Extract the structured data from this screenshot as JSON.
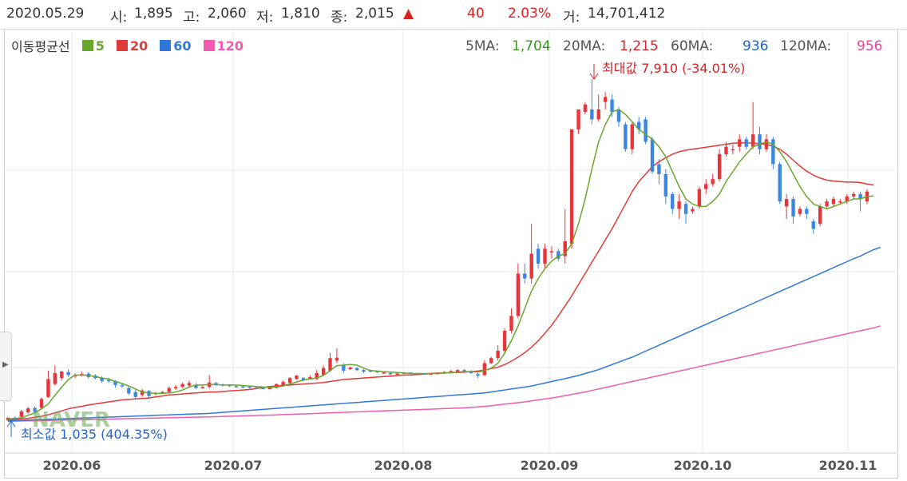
{
  "info": {
    "date": "2020.05.29",
    "open_label": "시:",
    "open": "1,895",
    "high_label": "고:",
    "high": "2,060",
    "low_label": "저:",
    "low": "1,810",
    "close_label": "종:",
    "close": "2,015",
    "arrow": "▲",
    "change": "40",
    "change_pct": "2.03%",
    "volume_label": "거:",
    "volume": "14,701,412"
  },
  "legend": {
    "title": "이동평균선",
    "items": [
      {
        "label": "5",
        "color": "#69a62d"
      },
      {
        "label": "20",
        "color": "#e03a3a"
      },
      {
        "label": "60",
        "color": "#2f78d9"
      },
      {
        "label": "120",
        "color": "#f05bb0"
      }
    ]
  },
  "ma_values": [
    {
      "name": "5MA:",
      "value": "1,704",
      "color": "#3a9a1e"
    },
    {
      "name": "20MA:",
      "value": "1,215",
      "color": "#e0202a"
    },
    {
      "name": "60MA:",
      "value": "936",
      "color": "#1a66c8"
    },
    {
      "name": "120MA:",
      "value": "956",
      "color": "#f0409e"
    }
  ],
  "annotations": {
    "max_label": "최대값 7,910 (-34.01%)",
    "min_label": "최소값 1,035 (404.35%)",
    "watermark": "NAVER"
  },
  "side_tab_icon": "expand-arrow-icon",
  "chart_data": {
    "type": "candlestick",
    "title": "",
    "x_tick_labels": [
      "2020.06",
      "2020.07",
      "2020.08",
      "2020.09",
      "2020.10",
      "2020.11"
    ],
    "grid": true,
    "ylim": [
      1035,
      7910
    ],
    "colors": {
      "up": "#e8343a",
      "down": "#3b86e0"
    },
    "candles": [
      [
        1053,
        1100,
        1040,
        1120
      ],
      [
        1100,
        1080,
        1050,
        1120
      ],
      [
        1120,
        1230,
        1110,
        1260
      ],
      [
        1210,
        1290,
        1180,
        1320
      ],
      [
        1300,
        1220,
        1200,
        1330
      ],
      [
        1300,
        1480,
        1270,
        1510
      ],
      [
        1520,
        1880,
        1500,
        2050
      ],
      [
        1780,
        2000,
        1750,
        2150
      ],
      [
        1900,
        2030,
        1850,
        2050
      ],
      [
        2020,
        1960,
        1920,
        2080
      ],
      [
        1940,
        1960,
        1900,
        2000
      ],
      [
        1960,
        1980,
        1940,
        2030
      ],
      [
        1990,
        1920,
        1890,
        2020
      ],
      [
        1950,
        1900,
        1870,
        1980
      ],
      [
        1910,
        1840,
        1800,
        1940
      ],
      [
        1860,
        1850,
        1800,
        1900
      ],
      [
        1840,
        1760,
        1710,
        1860
      ],
      [
        1760,
        1740,
        1700,
        1800
      ],
      [
        1700,
        1590,
        1560,
        1740
      ],
      [
        1620,
        1520,
        1480,
        1660
      ],
      [
        1560,
        1650,
        1520,
        1680
      ],
      [
        1640,
        1540,
        1500,
        1660
      ],
      [
        1600,
        1600,
        1550,
        1620
      ],
      [
        1610,
        1620,
        1580,
        1640
      ],
      [
        1620,
        1700,
        1600,
        1730
      ],
      [
        1690,
        1720,
        1660,
        1760
      ],
      [
        1720,
        1780,
        1700,
        1810
      ],
      [
        1750,
        1800,
        1720,
        1850
      ],
      [
        1760,
        1700,
        1680,
        1800
      ],
      [
        1700,
        1720,
        1680,
        1740
      ],
      [
        1720,
        1810,
        1700,
        1960
      ],
      [
        1800,
        1770,
        1740,
        1820
      ],
      [
        1770,
        1760,
        1730,
        1790
      ],
      [
        1760,
        1750,
        1720,
        1770
      ],
      [
        1740,
        1730,
        1700,
        1760
      ],
      [
        1730,
        1720,
        1700,
        1740
      ],
      [
        1720,
        1710,
        1690,
        1730
      ],
      [
        1710,
        1700,
        1680,
        1720
      ],
      [
        1700,
        1690,
        1680,
        1710
      ],
      [
        1690,
        1700,
        1680,
        1720
      ],
      [
        1700,
        1780,
        1690,
        1790
      ],
      [
        1750,
        1820,
        1740,
        1850
      ],
      [
        1800,
        1900,
        1780,
        1920
      ],
      [
        1880,
        1950,
        1860,
        1960
      ],
      [
        1900,
        1860,
        1840,
        1920
      ],
      [
        1880,
        1920,
        1870,
        1960
      ],
      [
        1880,
        2000,
        1860,
        2060
      ],
      [
        1960,
        2100,
        1940,
        2150
      ],
      [
        2050,
        2300,
        2020,
        2400
      ],
      [
        2250,
        2310,
        2200,
        2500
      ],
      [
        2150,
        2050,
        2000,
        2200
      ],
      [
        2080,
        2110,
        2060,
        2130
      ],
      [
        2100,
        2060,
        2040,
        2120
      ],
      [
        2060,
        2030,
        2000,
        2080
      ],
      [
        2050,
        2040,
        2020,
        2070
      ],
      [
        2040,
        2020,
        2000,
        2050
      ],
      [
        2010,
        2010,
        1990,
        2020
      ],
      [
        2000,
        1980,
        1960,
        2010
      ],
      [
        1980,
        1990,
        1970,
        2000
      ],
      [
        1990,
        2010,
        1980,
        2020
      ],
      [
        2010,
        2000,
        1990,
        2020
      ],
      [
        2000,
        1990,
        1980,
        2010
      ],
      [
        1990,
        1980,
        1970,
        2000
      ],
      [
        1980,
        1990,
        1970,
        2000
      ],
      [
        1990,
        2000,
        1980,
        2010
      ],
      [
        1990,
        2020,
        1980,
        2040
      ],
      [
        2000,
        2040,
        1990,
        2060
      ],
      [
        2030,
        2060,
        2010,
        2080
      ],
      [
        2060,
        2030,
        2020,
        2080
      ],
      [
        2040,
        2000,
        1980,
        2060
      ],
      [
        1980,
        1950,
        1900,
        2000
      ],
      [
        1960,
        2200,
        1940,
        2260
      ],
      [
        2200,
        2300,
        2180,
        2330
      ],
      [
        2300,
        2450,
        2250,
        2560
      ],
      [
        2450,
        2850,
        2400,
        2900
      ],
      [
        2850,
        3150,
        2800,
        3300
      ],
      [
        3150,
        4000,
        3100,
        4200
      ],
      [
        4000,
        3900,
        3800,
        4200
      ],
      [
        3900,
        4400,
        3800,
        5000
      ],
      [
        4500,
        4200,
        4100,
        4600
      ],
      [
        4200,
        4500,
        4100,
        4600
      ],
      [
        4450,
        4450,
        4300,
        4550
      ],
      [
        4450,
        4300,
        4250,
        4500
      ],
      [
        4350,
        4650,
        4200,
        5300
      ],
      [
        4600,
        6900,
        4500,
        6900
      ],
      [
        6900,
        7300,
        6800,
        7300
      ],
      [
        7250,
        7400,
        7200,
        7450
      ],
      [
        7300,
        7100,
        7000,
        7910
      ],
      [
        7100,
        7300,
        7050,
        7600
      ],
      [
        7450,
        7550,
        7300,
        7650
      ],
      [
        7500,
        7250,
        7150,
        7600
      ],
      [
        7300,
        7050,
        6950,
        7350
      ],
      [
        7000,
        6500,
        6450,
        7050
      ],
      [
        6500,
        7000,
        6400,
        7050
      ],
      [
        7050,
        6900,
        6800,
        7150
      ],
      [
        7100,
        6650,
        6600,
        7150
      ],
      [
        6700,
        6050,
        6000,
        6750
      ],
      [
        6200,
        6000,
        5800,
        6300
      ],
      [
        6000,
        5550,
        5400,
        6100
      ],
      [
        5600,
        5300,
        5200,
        5650
      ],
      [
        5300,
        5450,
        5100,
        5600
      ],
      [
        5400,
        5200,
        5000,
        5450
      ],
      [
        5250,
        5300,
        5200,
        5350
      ],
      [
        5350,
        5700,
        5300,
        5750
      ],
      [
        5700,
        5800,
        5600,
        5900
      ],
      [
        5800,
        5900,
        5750,
        6000
      ],
      [
        5900,
        6400,
        5850,
        6500
      ],
      [
        6400,
        6550,
        6350,
        6650
      ],
      [
        6500,
        6500,
        6400,
        6600
      ],
      [
        6550,
        6700,
        6450,
        6800
      ],
      [
        6700,
        6550,
        6500,
        6750
      ],
      [
        6550,
        6800,
        6500,
        7450
      ],
      [
        6800,
        6500,
        6400,
        6950
      ],
      [
        6500,
        6700,
        6450,
        6800
      ],
      [
        6700,
        6200,
        6100,
        6750
      ],
      [
        6200,
        5450,
        5400,
        6250
      ],
      [
        5350,
        5500,
        5100,
        5600
      ],
      [
        5500,
        5150,
        5000,
        5550
      ],
      [
        5200,
        5300,
        5150,
        5350
      ],
      [
        5300,
        5200,
        5100,
        5350
      ],
      [
        5050,
        4900,
        4800,
        5100
      ],
      [
        5000,
        5350,
        4950,
        5400
      ],
      [
        5350,
        5450,
        5300,
        5500
      ],
      [
        5400,
        5500,
        5350,
        5550
      ],
      [
        5450,
        5450,
        5400,
        5500
      ],
      [
        5450,
        5550,
        5400,
        5600
      ],
      [
        5550,
        5600,
        5500,
        5650
      ],
      [
        5600,
        5500,
        5250,
        5650
      ],
      [
        5450,
        5650,
        5400,
        5700
      ]
    ],
    "series": [
      {
        "name": "5",
        "values": [
          1080,
          1090,
          1100,
          1150,
          1200,
          1280,
          1380,
          1550,
          1720,
          1870,
          1960,
          1960,
          1950,
          1930,
          1900,
          1880,
          1830,
          1790,
          1740,
          1680,
          1620,
          1600,
          1590,
          1590,
          1600,
          1620,
          1660,
          1720,
          1760,
          1760,
          1770,
          1770,
          1760,
          1760,
          1760,
          1750,
          1740,
          1730,
          1720,
          1710,
          1720,
          1740,
          1780,
          1820,
          1860,
          1880,
          1900,
          1950,
          2050,
          2150,
          2160,
          2170,
          2160,
          2100,
          2050,
          2040,
          2030,
          2020,
          2010,
          2000,
          1990,
          1990,
          1990,
          1990,
          1990,
          2000,
          2010,
          2020,
          2030,
          2030,
          2020,
          2050,
          2100,
          2200,
          2400,
          2650,
          2950,
          3300,
          3650,
          3900,
          4100,
          4250,
          4350,
          4400,
          4600,
          5000,
          5500,
          6100,
          6650,
          7000,
          7250,
          7300,
          7200,
          7050,
          6900,
          6800,
          6700,
          6550,
          6350,
          6050,
          5750,
          5500,
          5400,
          5350,
          5350,
          5450,
          5600,
          5850,
          6050,
          6250,
          6400,
          6550,
          6600,
          6650,
          6600,
          6450,
          6250,
          6000,
          5750,
          5550,
          5400,
          5350,
          5300,
          5350,
          5400,
          5450,
          5500,
          5500,
          5550,
          5560
        ]
      },
      {
        "name": "20",
        "values": [
          1060,
          1070,
          1080,
          1090,
          1110,
          1130,
          1160,
          1200,
          1240,
          1280,
          1310,
          1330,
          1360,
          1380,
          1400,
          1420,
          1440,
          1460,
          1470,
          1480,
          1490,
          1500,
          1520,
          1540,
          1560,
          1570,
          1580,
          1590,
          1600,
          1610,
          1620,
          1620,
          1630,
          1640,
          1650,
          1660,
          1670,
          1690,
          1710,
          1730,
          1740,
          1750,
          1760,
          1770,
          1780,
          1790,
          1800,
          1810,
          1830,
          1850,
          1870,
          1880,
          1890,
          1900,
          1910,
          1920,
          1930,
          1940,
          1950,
          1960,
          1960,
          1970,
          1980,
          1990,
          2000,
          2000,
          2010,
          2010,
          2020,
          2030,
          2040,
          2060,
          2090,
          2120,
          2170,
          2240,
          2320,
          2410,
          2520,
          2650,
          2800,
          2960,
          3150,
          3350,
          3550,
          3780,
          4000,
          4230,
          4450,
          4680,
          4900,
          5150,
          5400,
          5650,
          5850,
          6000,
          6150,
          6250,
          6330,
          6400,
          6450,
          6480,
          6500,
          6520,
          6540,
          6560,
          6580,
          6600,
          6620,
          6630,
          6630,
          6620,
          6610,
          6600,
          6560,
          6500,
          6400,
          6280,
          6160,
          6060,
          5980,
          5920,
          5880,
          5860,
          5850,
          5840,
          5840,
          5830,
          5800,
          5780
        ]
      },
      {
        "name": "60",
        "values": [
          1040,
          1045,
          1050,
          1055,
          1060,
          1065,
          1070,
          1075,
          1080,
          1085,
          1090,
          1095,
          1100,
          1105,
          1110,
          1115,
          1120,
          1125,
          1130,
          1135,
          1140,
          1145,
          1150,
          1155,
          1160,
          1165,
          1170,
          1175,
          1180,
          1185,
          1190,
          1200,
          1210,
          1220,
          1230,
          1240,
          1250,
          1260,
          1270,
          1280,
          1290,
          1300,
          1310,
          1320,
          1330,
          1340,
          1350,
          1360,
          1370,
          1380,
          1390,
          1400,
          1410,
          1420,
          1430,
          1440,
          1450,
          1460,
          1470,
          1480,
          1490,
          1500,
          1510,
          1520,
          1530,
          1540,
          1550,
          1560,
          1570,
          1580,
          1590,
          1600,
          1620,
          1640,
          1660,
          1680,
          1700,
          1720,
          1740,
          1770,
          1800,
          1830,
          1860,
          1890,
          1920,
          1950,
          1990,
          2030,
          2070,
          2120,
          2170,
          2220,
          2270,
          2320,
          2380,
          2440,
          2500,
          2560,
          2620,
          2680,
          2740,
          2800,
          2860,
          2920,
          2980,
          3040,
          3100,
          3160,
          3220,
          3280,
          3340,
          3400,
          3460,
          3520,
          3580,
          3640,
          3700,
          3760,
          3820,
          3880,
          3940,
          4000,
          4060,
          4120,
          4180,
          4240,
          4300,
          4350,
          4420,
          4480,
          4530
        ]
      },
      {
        "name": "120",
        "values": [
          1030,
          1033,
          1036,
          1039,
          1042,
          1045,
          1048,
          1051,
          1054,
          1057,
          1060,
          1063,
          1066,
          1069,
          1072,
          1075,
          1078,
          1081,
          1084,
          1087,
          1090,
          1093,
          1096,
          1099,
          1102,
          1105,
          1108,
          1111,
          1114,
          1117,
          1120,
          1124,
          1128,
          1132,
          1136,
          1140,
          1144,
          1148,
          1152,
          1156,
          1160,
          1165,
          1170,
          1175,
          1180,
          1185,
          1190,
          1195,
          1200,
          1205,
          1210,
          1215,
          1220,
          1225,
          1230,
          1235,
          1240,
          1245,
          1250,
          1255,
          1260,
          1265,
          1270,
          1275,
          1280,
          1285,
          1290,
          1295,
          1300,
          1310,
          1320,
          1330,
          1345,
          1360,
          1375,
          1390,
          1405,
          1420,
          1440,
          1460,
          1480,
          1500,
          1520,
          1545,
          1570,
          1595,
          1620,
          1650,
          1680,
          1710,
          1740,
          1770,
          1800,
          1830,
          1860,
          1890,
          1920,
          1950,
          1980,
          2010,
          2040,
          2070,
          2100,
          2130,
          2160,
          2190,
          2220,
          2250,
          2280,
          2310,
          2340,
          2370,
          2400,
          2430,
          2460,
          2490,
          2520,
          2550,
          2580,
          2610,
          2640,
          2670,
          2700,
          2730,
          2760,
          2790,
          2820,
          2850,
          2880,
          2910,
          2950
        ]
      }
    ]
  }
}
